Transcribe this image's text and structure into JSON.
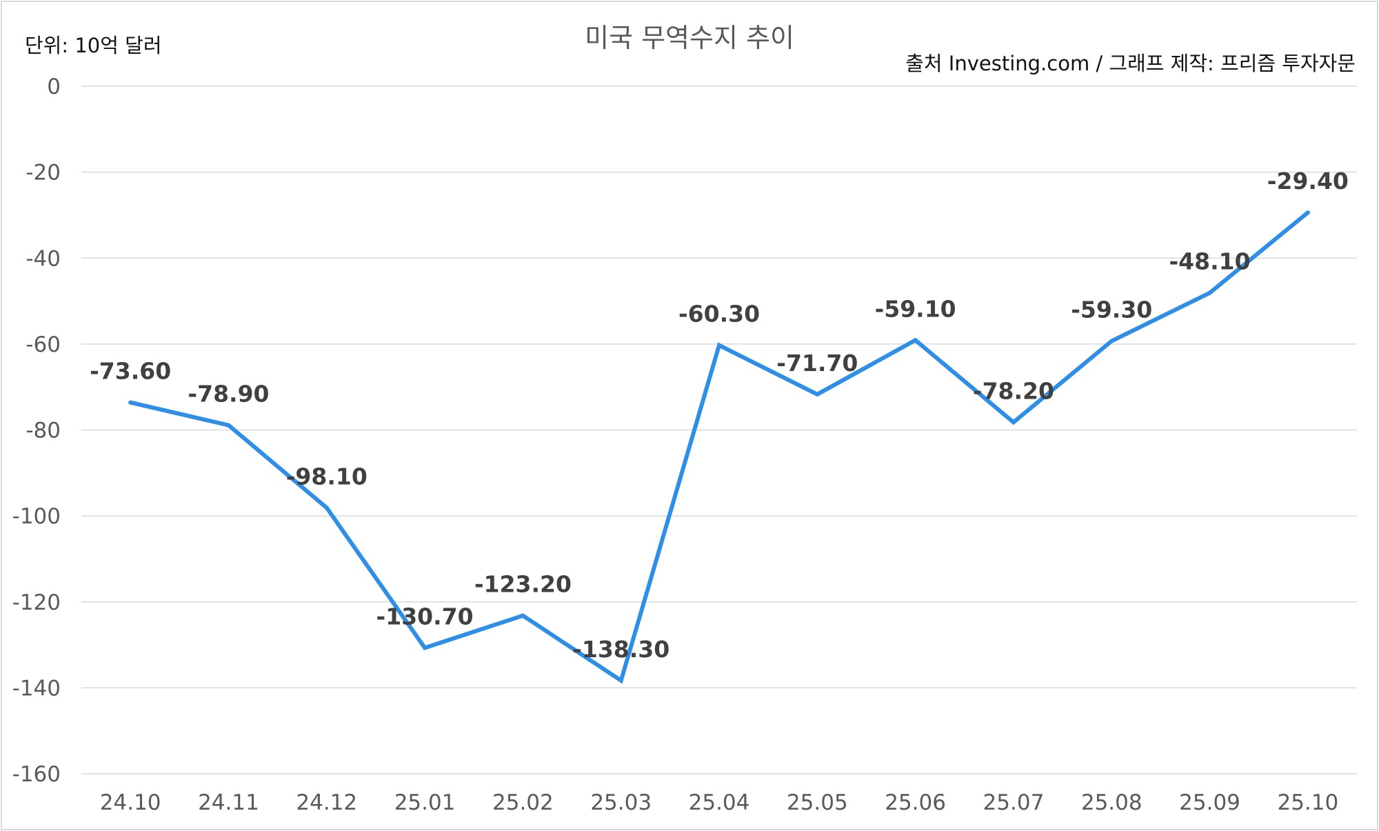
{
  "chart_data": {
    "type": "line",
    "title": "미국 무역수지 추이",
    "unit_label": "단위: 10억 달러",
    "source_label": "출처 Investing.com / 그래프 제작: 프리즘 투자자문",
    "xlabel": "",
    "ylabel": "",
    "ylim": [
      -160,
      0
    ],
    "yticks": [
      0,
      -20,
      -40,
      -60,
      -80,
      -100,
      -120,
      -140,
      -160
    ],
    "ytick_labels": [
      "0",
      "-20",
      "-40",
      "-60",
      "-80",
      "-100",
      "-120",
      "-140",
      "-160"
    ],
    "grid": true,
    "legend": "none",
    "categories": [
      "24.10",
      "24.11",
      "24.12",
      "25.01",
      "25.02",
      "25.03",
      "25.04",
      "25.05",
      "25.06",
      "25.07",
      "25.08",
      "25.09",
      "25.10"
    ],
    "series": [
      {
        "values": [
          -73.6,
          -78.9,
          -98.1,
          -130.7,
          -123.2,
          -138.3,
          -60.3,
          -71.7,
          -59.1,
          -78.2,
          -59.3,
          -48.1,
          -29.4
        ],
        "labels": [
          "-73.60",
          "-78.90",
          "-98.10",
          "-130.70",
          "-123.20",
          "-138.30",
          "-60.30",
          "-71.70",
          "-59.10",
          "-78.20",
          "-59.30",
          "-48.10",
          "-29.40"
        ],
        "color": "#2f8fe6"
      }
    ]
  },
  "colors": {
    "line": "#2f8fe6",
    "grid": "#d9d9d9",
    "title_text": "#595959",
    "data_label_text": "#404040",
    "axis_text": "#595959"
  }
}
